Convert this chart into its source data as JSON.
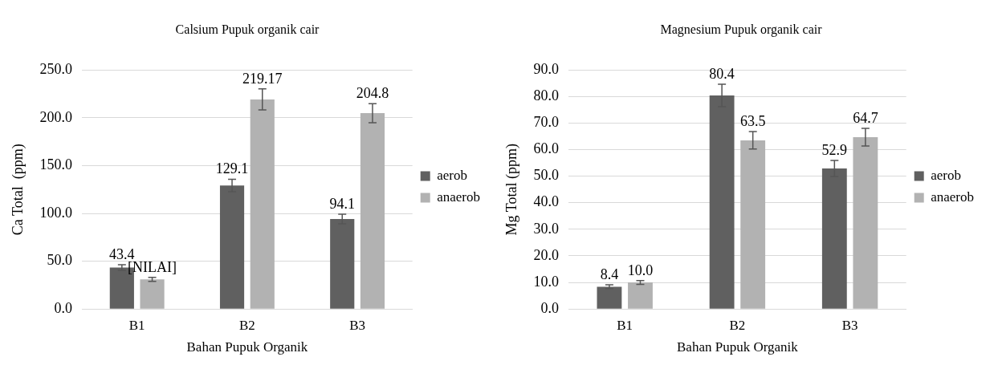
{
  "chart_data": [
    {
      "type": "bar",
      "title": "Calsium Pupuk organik cair",
      "xlabel": "Bahan Pupuk Organik",
      "ylabel": "Ca Total  (ppm)",
      "categories": [
        "B1",
        "B2",
        "B3"
      ],
      "series": [
        {
          "name": "aerob",
          "color": "#606060",
          "values": [
            43.4,
            129.1,
            94.1
          ],
          "errors": [
            3,
            6.5,
            5
          ],
          "value_labels": [
            "43.4",
            "129.1",
            "94.1"
          ]
        },
        {
          "name": "anaerob",
          "color": "#b2b2b2",
          "values": [
            31,
            219.17,
            204.8
          ],
          "errors": [
            2,
            11,
            10
          ],
          "value_labels": [
            "[NILAI]",
            "219.17",
            "204.8"
          ]
        }
      ],
      "ylim": [
        0,
        250
      ],
      "yticks": [
        {
          "value": 0,
          "label": "0.0"
        },
        {
          "value": 50,
          "label": "50.0"
        },
        {
          "value": 100,
          "label": "100.0"
        },
        {
          "value": 150,
          "label": "150.0"
        },
        {
          "value": 200,
          "label": "200.0"
        },
        {
          "value": 250,
          "label": "250.0"
        }
      ],
      "grid": "y",
      "legend": "right"
    },
    {
      "type": "bar",
      "title": "Magnesium Pupuk organik cair",
      "xlabel": "Bahan Pupuk Organik",
      "ylabel": "Mg Total (ppm)",
      "categories": [
        "B1",
        "B2",
        "B3"
      ],
      "series": [
        {
          "name": "aerob",
          "color": "#606060",
          "values": [
            8.4,
            80.4,
            52.9
          ],
          "errors": [
            0.7,
            4.2,
            3
          ],
          "value_labels": [
            "8.4",
            "80.4",
            "52.9"
          ]
        },
        {
          "name": "anaerob",
          "color": "#b2b2b2",
          "values": [
            10.0,
            63.5,
            64.7
          ],
          "errors": [
            0.7,
            3.3,
            3.3
          ],
          "value_labels": [
            "10.0",
            "63.5",
            "64.7"
          ]
        }
      ],
      "ylim": [
        0,
        90
      ],
      "yticks": [
        {
          "value": 0,
          "label": "0.0"
        },
        {
          "value": 10,
          "label": "10.0"
        },
        {
          "value": 20,
          "label": "20.0"
        },
        {
          "value": 30,
          "label": "30.0"
        },
        {
          "value": 40,
          "label": "40.0"
        },
        {
          "value": 50,
          "label": "50.0"
        },
        {
          "value": 60,
          "label": "60.0"
        },
        {
          "value": 70,
          "label": "70.0"
        },
        {
          "value": 80,
          "label": "80.0"
        },
        {
          "value": 90,
          "label": "90.0"
        }
      ],
      "grid": "y",
      "legend": "right"
    }
  ]
}
